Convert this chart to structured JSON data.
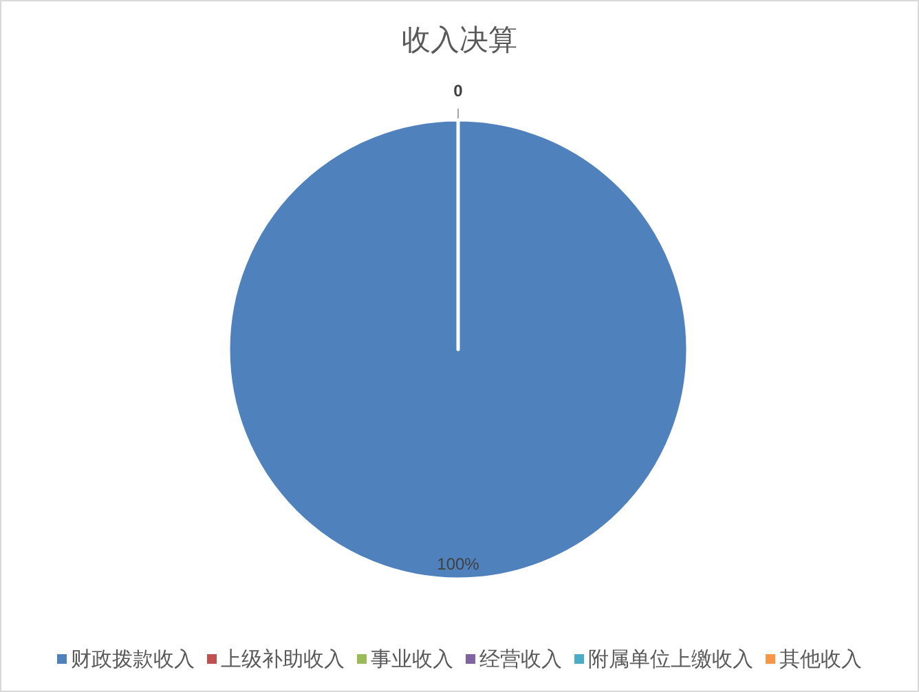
{
  "chart_data": {
    "type": "pie",
    "title": "收入决算",
    "categories": [
      "财政拨款收入",
      "上级补助收入",
      "事业收入",
      "经营收入",
      "附属单位上缴收入",
      "其他收入"
    ],
    "values": [
      100,
      0,
      0,
      0,
      0,
      0
    ],
    "colors": [
      "#4f81bd",
      "#c0504d",
      "#9bbb59",
      "#8064a2",
      "#4bacc6",
      "#f79646"
    ],
    "value_labels": [
      "100%",
      "0",
      null,
      null,
      null,
      null
    ],
    "legend": "bottom"
  }
}
